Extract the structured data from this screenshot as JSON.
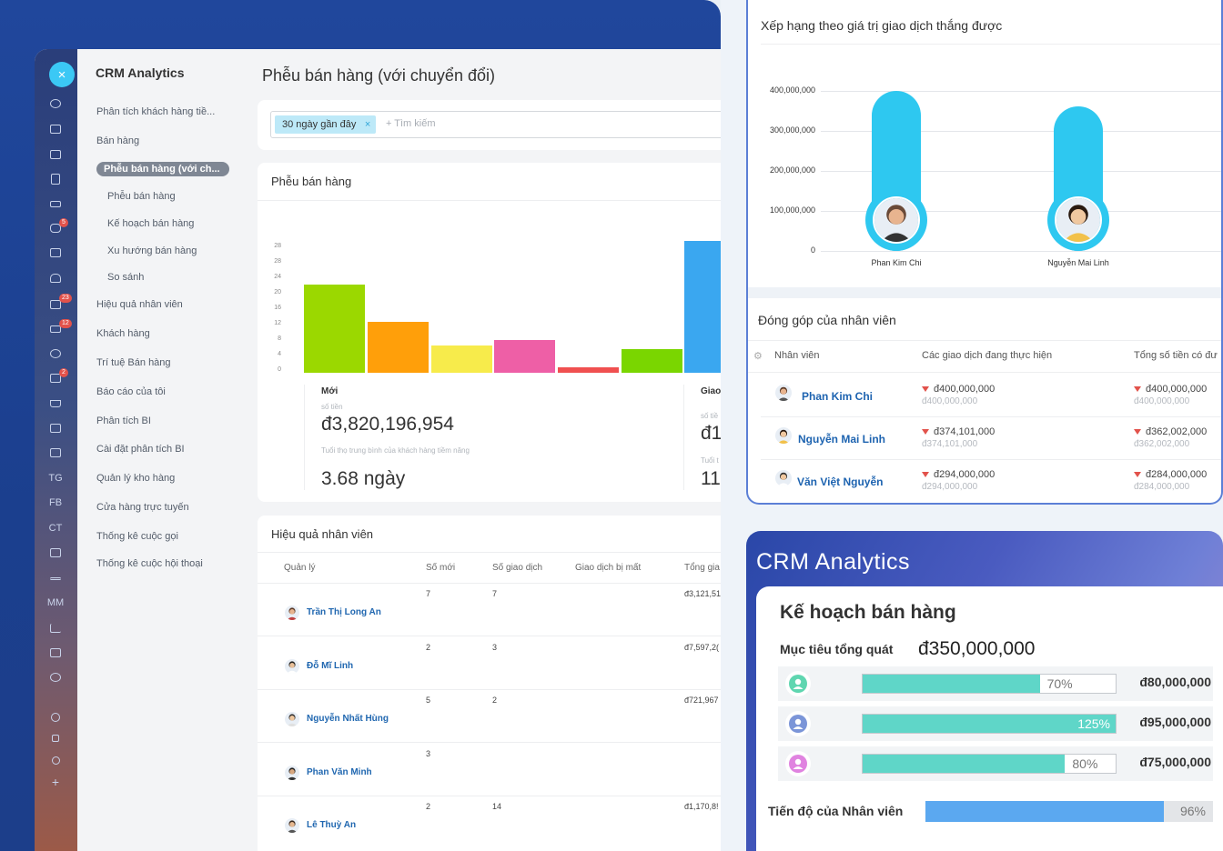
{
  "app": {
    "title": "CRM Analytics",
    "page_title": "Phễu bán hàng (với chuyển đổi)",
    "close_icon": "×"
  },
  "iconbar": {
    "badges": [
      "5",
      "23",
      "12",
      "2"
    ],
    "text_items": [
      "TG",
      "FB",
      "CT",
      "MM"
    ]
  },
  "nav": {
    "items": [
      "Phân tích khách hàng tiề...",
      "Bán hàng",
      "Phễu bán hàng (với ch...",
      "Phễu bán hàng",
      "Kế hoạch bán hàng",
      "Xu hướng bán hàng",
      "So sánh",
      "Hiệu quả nhân viên",
      "Khách hàng",
      "Trí tuệ Bán hàng",
      "Báo cáo của tôi",
      "Phân tích BI",
      "Cài đặt phân tích BI",
      "Quản lý kho hàng",
      "Cửa hàng trực tuyến",
      "Thống kê cuộc gọi",
      "Thống kê cuộc hội thoại"
    ]
  },
  "filter": {
    "chip": "30 ngày gần đây",
    "chip_close": "×",
    "search_placeholder": "+ Tìm kiếm"
  },
  "funnel": {
    "title": "Phễu bán hàng",
    "yticks": [
      "28",
      "28",
      "24",
      "20",
      "16",
      "12",
      "8",
      "4",
      "0"
    ],
    "bars": [
      {
        "value": 24,
        "color": "#9bd800"
      },
      {
        "value": 14,
        "color": "#ff9f0a"
      },
      {
        "value": 7.5,
        "color": "#f7eb4b"
      },
      {
        "value": 9,
        "color": "#ee5fa6"
      },
      {
        "value": 1.5,
        "color": "#f05050"
      },
      {
        "value": 6.5,
        "color": "#7ad600"
      },
      {
        "value": 36,
        "color": "#3aa7f0"
      }
    ],
    "stage1": {
      "label": "Mới",
      "amount_label": "số tiền",
      "amount": "đ3,820,196,954",
      "age_label": "Tuổi thọ trung bình của khách hàng tiềm năng",
      "age": "3.68 ngày"
    },
    "stage2": {
      "label": "Giao",
      "amount_label": "số tiề",
      "amount": "đ1",
      "age_label": "Tuổi t",
      "age": "11."
    }
  },
  "employee_perf": {
    "title": "Hiệu quả nhân viên",
    "headers": [
      "Quản lý",
      "Số mới",
      "Số giao dịch",
      "Giao dịch bị mất",
      "Tổng gia"
    ],
    "rows": [
      {
        "name": "Trần Thị Long An",
        "new": "7",
        "deals": "7",
        "lost": "",
        "total": "đ3,121,51"
      },
      {
        "name": "Đỗ Mĩ Linh",
        "new": "2",
        "deals": "3",
        "lost": "",
        "total": "đ7,597,2("
      },
      {
        "name": "Nguyễn Nhất Hùng",
        "new": "5",
        "deals": "2",
        "lost": "",
        "total": "đ721,967"
      },
      {
        "name": "Phan Văn Minh",
        "new": "3",
        "deals": "",
        "lost": "",
        "total": ""
      },
      {
        "name": "Lê Thuỳ An",
        "new": "2",
        "deals": "14",
        "lost": "",
        "total": "đ1,170,8!"
      }
    ]
  },
  "ranking": {
    "title": "Xếp hạng theo giá trị giao dịch thắng được",
    "yticks": [
      "400,000,000",
      "300,000,000",
      "200,000,000",
      "100,000,000",
      "0"
    ],
    "chart_data": {
      "type": "bar",
      "categories": [
        "Phan Kim Chi",
        "Nguyễn Mai Linh"
      ],
      "values": [
        400000000,
        362000000
      ],
      "ylim": [
        0,
        400000000
      ]
    }
  },
  "contribution": {
    "title": "Đóng góp của nhân viên",
    "headers": [
      "Nhân viên",
      "Các giao dịch đang thực hiện",
      "Tổng số tiền có đư"
    ],
    "rows": [
      {
        "name": "Phan Kim Chi",
        "v1": "đ400,000,000",
        "v1b": "đ400,000,000",
        "v2": "đ400,000,000",
        "v2b": "đ400,000,000"
      },
      {
        "name": "Nguyễn Mai Linh",
        "v1": "đ374,101,000",
        "v1b": "đ374,101,000",
        "v2": "đ362,002,000",
        "v2b": "đ362,002,000"
      },
      {
        "name": "Văn Việt Nguyễn",
        "v1": "đ294,000,000",
        "v1b": "đ294,000,000",
        "v2": "đ284,000,000",
        "v2b": "đ284,000,000"
      }
    ]
  },
  "plan": {
    "brand": "CRM Analytics",
    "title": "Kế hoạch bán hàng",
    "target_label": "Mục tiêu tổng quát",
    "target_value": "đ350,000,000",
    "rows": [
      {
        "pct": "70%",
        "progress": 70,
        "amount": "đ80,000,000",
        "color": "#5fd6b0"
      },
      {
        "pct": "125%",
        "progress": 125,
        "amount": "đ95,000,000",
        "color": "#7b95d8"
      },
      {
        "pct": "80%",
        "progress": 80,
        "amount": "đ75,000,000",
        "color": "#e083e0"
      }
    ],
    "progress_label": "Tiến độ của Nhân viên",
    "progress_pct": "96%",
    "progress_value": 96
  }
}
